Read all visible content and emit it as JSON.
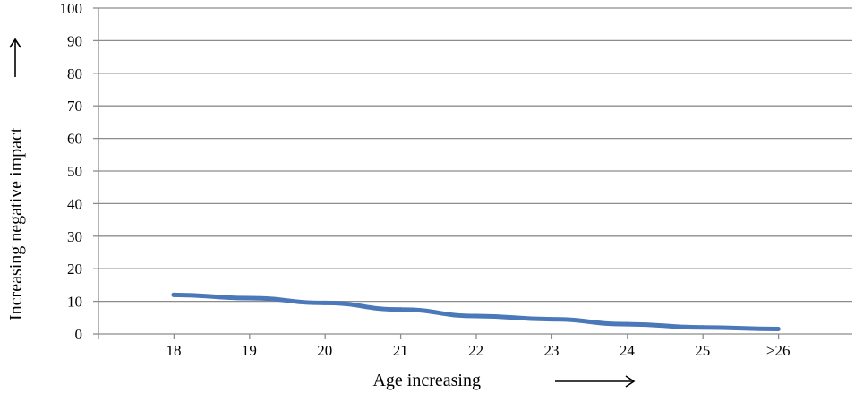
{
  "chart_data": {
    "type": "line",
    "title": "",
    "xlabel": "Age increasing",
    "ylabel": "Increasing negative impact",
    "categories": [
      "18",
      "19",
      "20",
      "21",
      "22",
      "23",
      "24",
      "25",
      ">26"
    ],
    "series": [
      {
        "values": [
          12,
          11,
          9.5,
          7.5,
          5.5,
          4.5,
          3,
          2,
          1.5
        ]
      }
    ],
    "ylim": [
      0,
      100
    ],
    "yticks": [
      "0",
      "10",
      "20",
      "30",
      "40",
      "50",
      "60",
      "70",
      "80",
      "90",
      "100"
    ],
    "grid": true,
    "legend": "none",
    "colors": {
      "line": "#4a78b8",
      "grid": "#8c8c8c",
      "axis": "#8c8c8c"
    }
  }
}
